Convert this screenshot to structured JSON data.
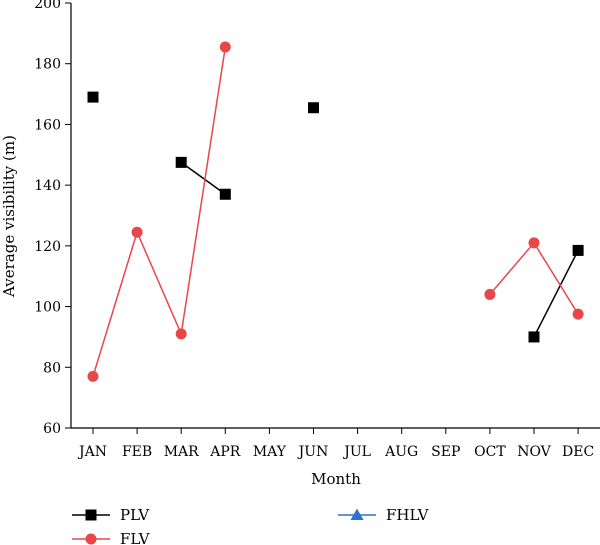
{
  "chart_data": {
    "type": "line",
    "xlabel": "Month",
    "ylabel": "Average visibility (m)",
    "categories": [
      "JAN",
      "FEB",
      "MAR",
      "APR",
      "MAY",
      "JUN",
      "JUL",
      "AUG",
      "SEP",
      "OCT",
      "NOV",
      "DEC"
    ],
    "ylim": [
      60,
      200
    ],
    "yticks": [
      60,
      80,
      100,
      120,
      140,
      160,
      180,
      200
    ],
    "grid": false,
    "legend_position": "bottom",
    "series": [
      {
        "name": "PLV",
        "color": "#000000",
        "marker": "square",
        "values": [
          169,
          null,
          147.5,
          137,
          null,
          165.5,
          null,
          null,
          null,
          null,
          90,
          118.5
        ]
      },
      {
        "name": "FLV",
        "color": "#e8474a",
        "marker": "circle",
        "values": [
          77,
          124.5,
          91,
          185.5,
          null,
          null,
          null,
          null,
          null,
          104,
          121,
          97.5
        ]
      },
      {
        "name": "FHLV",
        "color": "#2f6fd6",
        "marker": "triangle",
        "values": [
          null,
          null,
          null,
          null,
          null,
          null,
          null,
          null,
          null,
          null,
          null,
          null
        ]
      }
    ]
  }
}
